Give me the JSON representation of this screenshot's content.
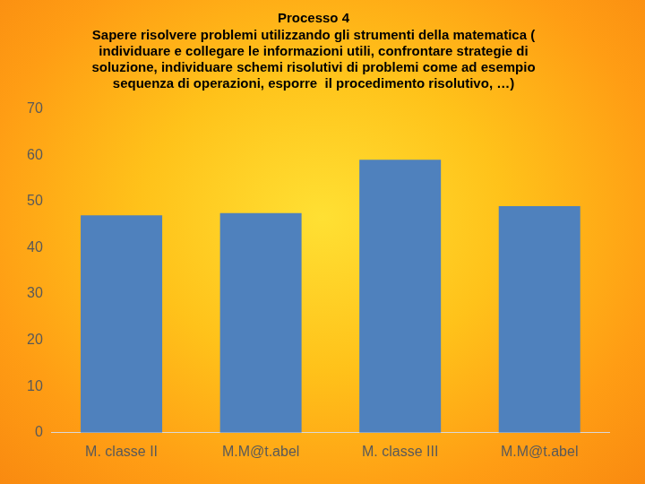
{
  "chart_data": {
    "type": "bar",
    "title": [
      "Processo 4",
      "Sapere risolvere problemi utilizzando gli strumenti della matematica (",
      "individuare e collegare le informazioni utili, confrontare strategie di",
      "soluzione, individuare schemi risolutivi di problemi come ad esempio",
      "sequenza di operazioni, esporre  il procedimento risolutivo, …)"
    ],
    "categories": [
      "M. classe II",
      "M.M@t.abel",
      "M. classe III",
      "M.M@t.abel"
    ],
    "values": [
      47,
      47.5,
      59,
      49
    ],
    "color": "#4f81bd",
    "ylim": [
      0,
      70
    ],
    "yticks": [
      0,
      10,
      20,
      30,
      40,
      50,
      60,
      70
    ],
    "grid": false
  }
}
